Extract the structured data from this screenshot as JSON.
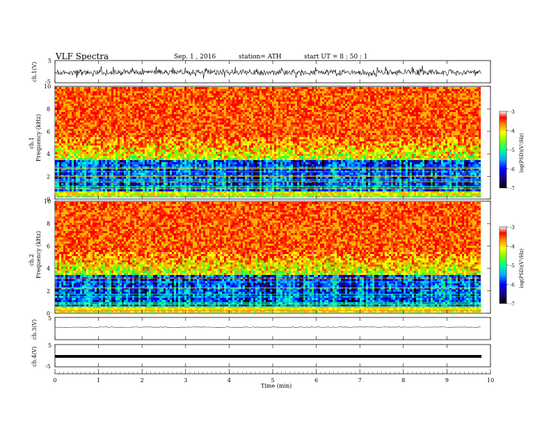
{
  "header": {
    "title": "VLF  Spectra",
    "date": "Sep. 1  , 2016",
    "station": "station= ATH",
    "start": "start  UT  =   8  : 50 : 1"
  },
  "chart_data": [
    {
      "type": "line",
      "panel": "ch1-waveform",
      "ylabel": "ch.1(V)",
      "ylim": [
        -5,
        5
      ],
      "yticks": [
        5,
        -5
      ],
      "description_values": {
        "baseline": 0,
        "noise_amplitude_approx": 1.5
      }
    },
    {
      "type": "heatmap",
      "panel": "ch1-spectrogram",
      "ylabel_top": "ch.1",
      "ylabel": "Frequency  (kHz)",
      "ylim": [
        0,
        10
      ],
      "yticks": [
        "0",
        "2",
        "4",
        "6",
        "8",
        "10"
      ],
      "colorbar": {
        "label": "log(PSD)(V²/Hz)",
        "range": [
          -7,
          -3
        ],
        "ticks": [
          "-3",
          "-4",
          "-5",
          "-6",
          "-7"
        ]
      }
    },
    {
      "type": "heatmap",
      "panel": "ch2-spectrogram",
      "ylabel_top": "ch.2",
      "ylabel": "Frequency  (kHz)",
      "ylim": [
        0,
        10
      ],
      "yticks": [
        "0",
        "2",
        "4",
        "6",
        "8",
        "10"
      ],
      "colorbar": {
        "label": "log(PSD)(V²/Hz)",
        "range": [
          -7,
          -3
        ],
        "ticks": [
          "-3",
          "-4",
          "-5",
          "-6",
          "-7"
        ]
      }
    },
    {
      "type": "line",
      "panel": "ch3-waveform",
      "ylabel": "ch.3(V)",
      "ylim": [
        -5,
        5
      ],
      "yticks": [
        "5"
      ],
      "description_values": {
        "baseline": -0.8
      }
    },
    {
      "type": "line",
      "panel": "ch4-waveform",
      "ylabel": "ch.4(V)",
      "ylim": [
        -5,
        5
      ],
      "yticks": [
        "5",
        "-5"
      ],
      "description_values": {
        "baseline": -1.0
      }
    }
  ],
  "xaxis": {
    "label": "Time  (min)",
    "range": [
      0,
      10
    ],
    "ticks": [
      "0",
      "1",
      "2",
      "3",
      "4",
      "5",
      "6",
      "7",
      "8",
      "9",
      "10"
    ],
    "data_end": 9.8
  }
}
